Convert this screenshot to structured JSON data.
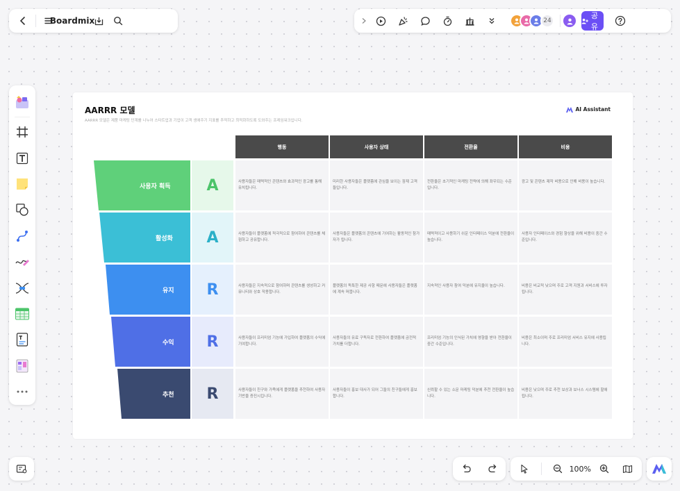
{
  "app": {
    "brand": "Boardmix"
  },
  "top_right": {
    "avatar_count": "24",
    "share_label": "공유"
  },
  "zoom": {
    "value": "100%"
  },
  "board": {
    "title": "AARRR 모델",
    "subtitle": "AARRR 모델은 제품 마케팅 단계를 나누어 스타트업과 기업이 고객 생애주기 지표를 추적하고 최적화하도록 도와주는 프레임워크입니다.",
    "ai_badge": "AI Assistant",
    "columns": [
      "행동",
      "사용자 상태",
      "전환율",
      "비용"
    ],
    "stages": [
      {
        "label": "사용자 획득",
        "letter": "A",
        "color": "#5fd07a",
        "letter_color": "#4cc46a",
        "letter_bg": "#e6f8ea",
        "cells": [
          "사용자들은 매력적인 콘텐츠와 효과적인 광고를 통해 유치됩니다.",
          "미리한 사용자들은 플랫폼에 관심을 보이는 잠재 고객들입니다.",
          "전환율은 초기적인 마케팅 전략에 의해 좌우되는 수준입니다.",
          "광고 및 콘텐츠 제작 비용으로 인해 비용이 높습니다."
        ]
      },
      {
        "label": "활성화",
        "letter": "A",
        "color": "#3bbfd6",
        "letter_color": "#2bb0c8",
        "letter_bg": "#e2f5f9",
        "cells": [
          "사용자들이 플랫폼에 적극적으로 참여하여 콘텐츠를 체험하고 공유합니다.",
          "사용자들은 플랫폼의 콘텐츠에 기여하는 활동적인 참가자가 됩니다.",
          "매력적이고 사용하기 쉬운 인터페이스 덕분에 전환율이 높습니다.",
          "사용자 인터페이스와 경험 향상을 위해 비용이 중간 수준입니다."
        ]
      },
      {
        "label": "유지",
        "letter": "R",
        "color": "#3d8ff0",
        "letter_color": "#3d8ff0",
        "letter_bg": "#e5f0fd",
        "cells": [
          "사용자들은 지속적으로 참여하며 콘텐츠를 생성하고 커뮤니티와 상호 작용합니다.",
          "플랫폼의 독특한 제공 사항 때문에 사용자들은 플랫폼에 계속 머뭅니다.",
          "지속적인 사용자 참여 덕분에 유지율이 높습니다.",
          "비용은 비교적 낮으며 주로 고객 지원과 서비스에 투자됩니다."
        ]
      },
      {
        "label": "수익",
        "letter": "R",
        "color": "#4f6fe6",
        "letter_color": "#4f6fe6",
        "letter_bg": "#e7ebfc",
        "cells": [
          "사용자들이 프리미엄 기능에 가입하여 플랫폼의 수익에 기여합니다.",
          "사용자들의 유료 구독자로 전환하여 플랫폼에 금전적 가치를 더합니다.",
          "프리미엄 기능의 인식된 가치에 영향을 받아 전환율이 중간 수준입니다.",
          "비용은 최소이며 주로 프리미엄 서비스 유지에 사용됩니다."
        ]
      },
      {
        "label": "추천",
        "letter": "R",
        "color": "#3a4a70",
        "letter_color": "#3a4a70",
        "letter_bg": "#e6e9f2",
        "cells": [
          "사용자들이 친구와 가족에게 플랫폼을 추천하여 사용자 기반을 증진시킵니다.",
          "사용자들이 홍보 대사가 되어 그들의 친구들에게 홍보합니다.",
          "신뢰할 수 있는 소문 마케팅 덕분에 추천 전환율이 높습니다.",
          "비용은 낮으며 주로 추천 보상과 보너스 시스템에 할애됩니다."
        ]
      }
    ]
  }
}
